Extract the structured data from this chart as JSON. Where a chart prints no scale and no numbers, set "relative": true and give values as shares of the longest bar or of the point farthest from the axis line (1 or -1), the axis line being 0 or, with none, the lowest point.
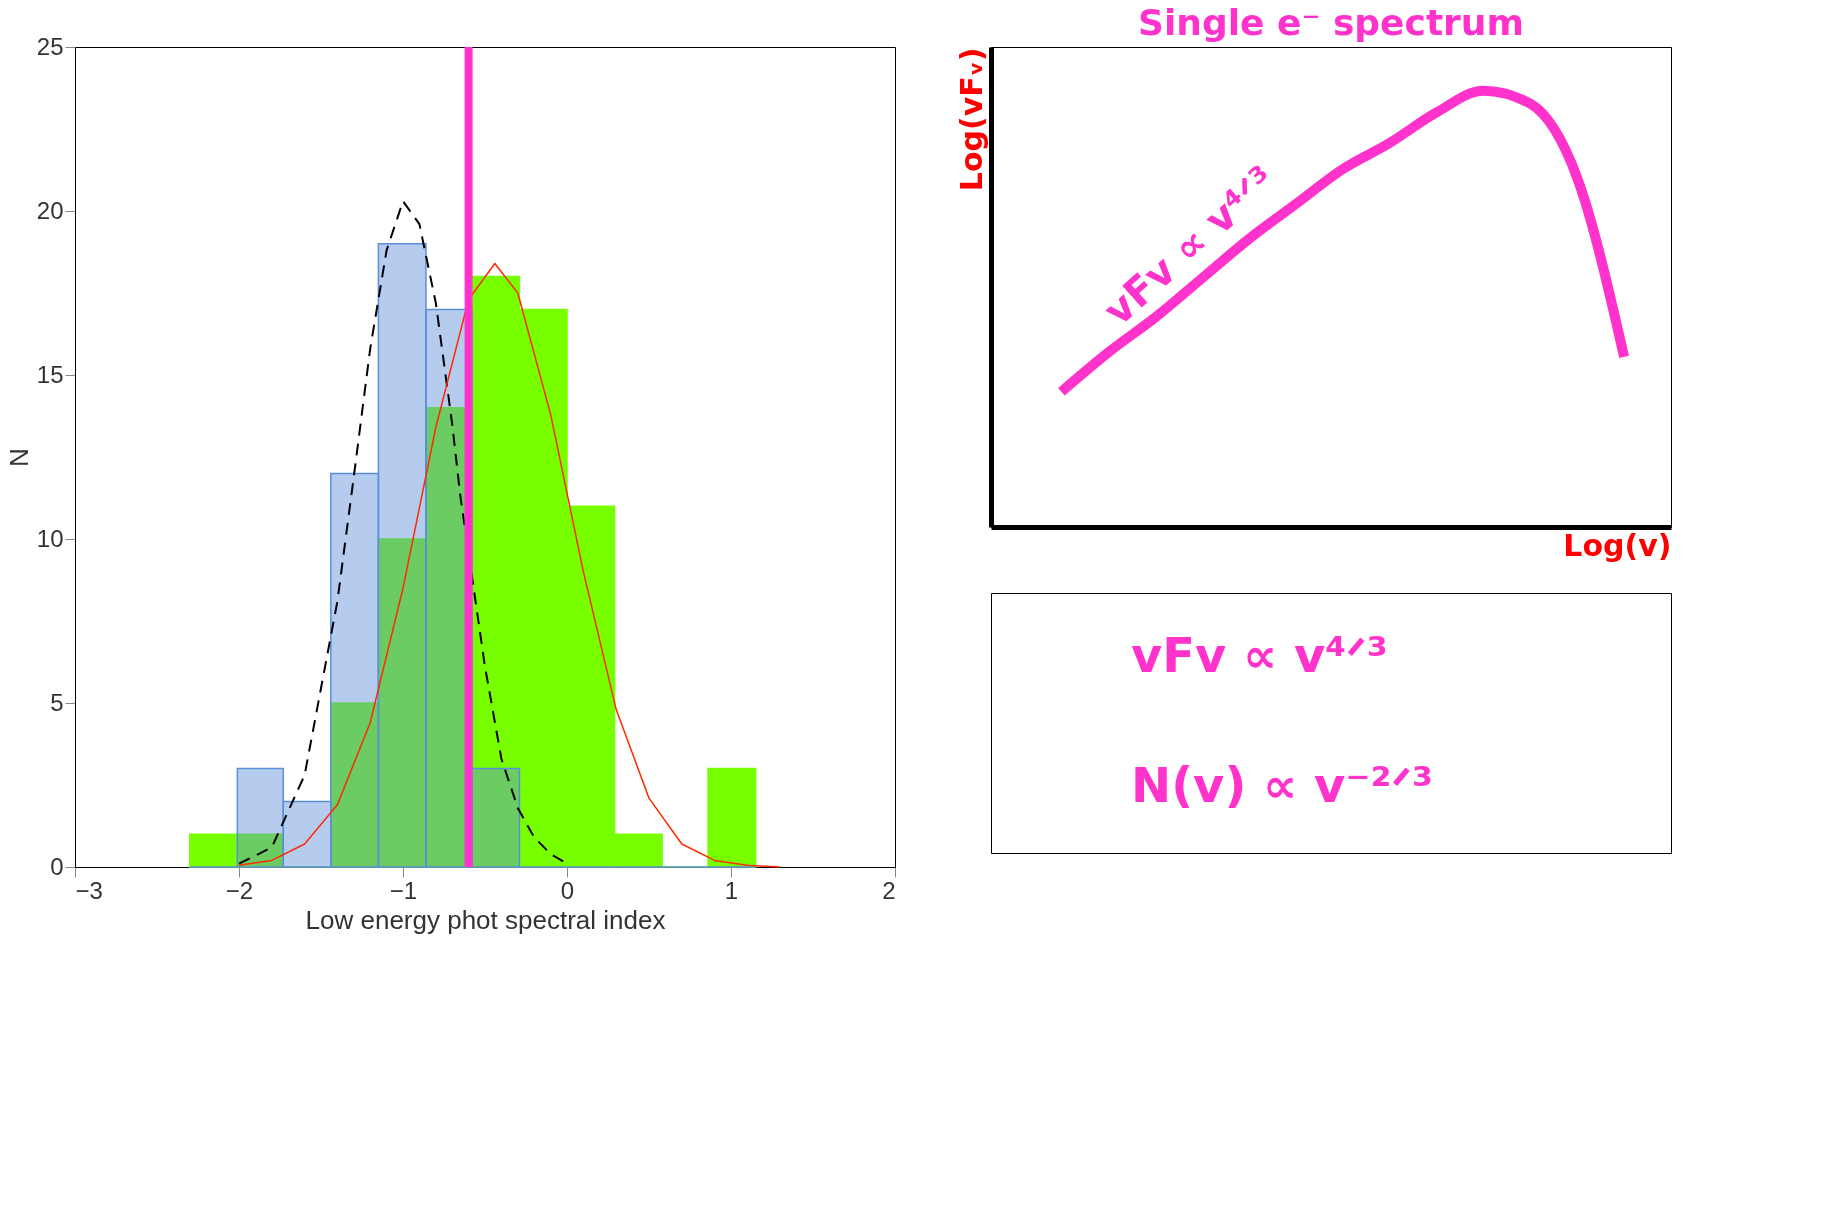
{
  "chart_data": [
    {
      "type": "histogram",
      "xlabel": "Low energy phot spectral index",
      "ylabel": "N",
      "bins": [
        -2.3,
        -2.01,
        -1.73,
        -1.44,
        -1.15,
        -0.86,
        -0.58,
        -0.29,
        0,
        0.29,
        0.58,
        0.86,
        1.15
      ],
      "series": [
        {
          "color": "#77ff00",
          "values": [
            1,
            1,
            0,
            5,
            10,
            14,
            18,
            17,
            11,
            1,
            0,
            3
          ]
        },
        {
          "color": "#5b8fd9",
          "values": [
            0,
            3,
            2,
            12,
            19,
            17,
            3,
            0,
            0,
            0,
            0,
            0
          ]
        },
        {
          "type": "line",
          "color": "#000000",
          "line_style": "dashed",
          "x": [
            -2.0,
            -1.8,
            -1.6,
            -1.4,
            -1.3,
            -1.2,
            -1.1,
            -1.0,
            -0.9,
            -0.8,
            -0.7,
            -0.65,
            -0.5,
            -0.4,
            -0.3,
            -0.2,
            -0.1,
            0.0
          ],
          "values": [
            0.1,
            0.6,
            2.8,
            8.1,
            11.9,
            15.8,
            18.8,
            20.3,
            19.6,
            17.2,
            13.5,
            11.3,
            6.1,
            3.3,
            1.8,
            0.9,
            0.4,
            0.1
          ]
        },
        {
          "type": "line",
          "color": "#ff2a00",
          "x": [
            -2.0,
            -1.8,
            -1.6,
            -1.4,
            -1.2,
            -1.0,
            -0.8,
            -0.6,
            -0.44,
            -0.3,
            -0.1,
            0.1,
            0.3,
            0.5,
            0.7,
            0.9,
            1.1,
            1.3
          ],
          "values": [
            0.05,
            0.2,
            0.7,
            1.9,
            4.4,
            8.5,
            13.4,
            17.3,
            18.4,
            17.5,
            13.8,
            9.0,
            4.8,
            2.1,
            0.7,
            0.2,
            0.05,
            0.0
          ]
        }
      ],
      "xlim": [
        -3,
        2
      ],
      "xticks": [
        -3,
        -2,
        -1,
        0,
        1,
        2
      ],
      "ylim": [
        0,
        25
      ],
      "yticks": [
        0,
        5,
        10,
        15,
        20,
        25
      ],
      "ref_lines": [
        {
          "axis": "x",
          "value": -0.6,
          "color": "#ff33cc"
        }
      ],
      "grid": false
    },
    {
      "type": "line",
      "relative": true,
      "title": "Single e⁻  spectrum",
      "xlabel": "Log(v)",
      "ylabel": "Log(vFᵥ)",
      "categories": [
        null,
        null,
        null,
        null,
        null,
        null,
        null,
        null,
        null,
        null,
        null,
        null,
        null
      ],
      "series": [
        {
          "color": "#ff33cc",
          "values": [
            0.31,
            0.4,
            0.48,
            0.57,
            0.66,
            0.74,
            0.82,
            0.88,
            0.95,
            1.0,
            0.97,
            0.8,
            0.39
          ]
        }
      ],
      "annotations": [
        "vFv ∝ v⁴ᐟ³"
      ],
      "marker": "none",
      "grid": false
    },
    {
      "type": "other",
      "annotations": [
        "vFv ∝ v⁴ᐟ³",
        "N(v) ∝ v⁻²ᐟ³"
      ]
    }
  ]
}
